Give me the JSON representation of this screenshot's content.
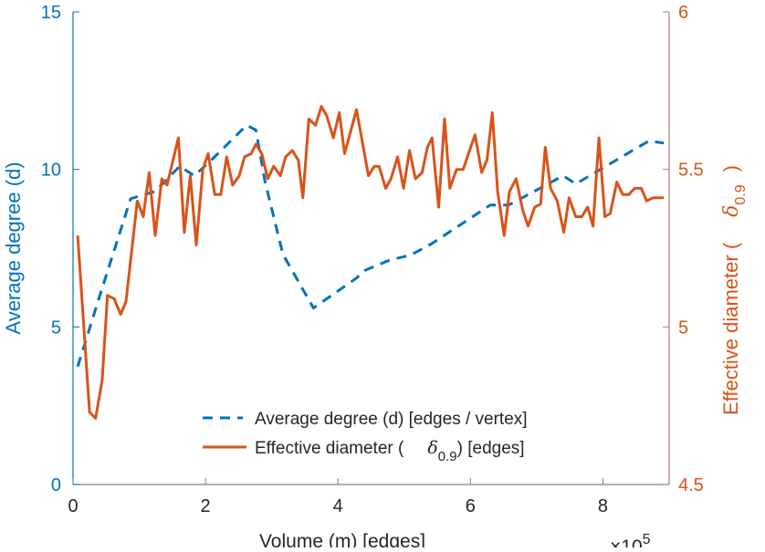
{
  "colors": {
    "left": "#0072BD",
    "right": "#D95319",
    "axis": "#262626",
    "right_axis_line": "#B07F74"
  },
  "chart_data": {
    "type": "line",
    "title": "",
    "xlabel": "Volume (m) [edges]",
    "x_exponent_label": "×10",
    "x_exponent": "5",
    "ylabel_left": "Average degree (d)",
    "ylabel_right_prefix": "Effective diameter (",
    "ylabel_right_symbol": "δ",
    "ylabel_right_sub": "0.9",
    "ylabel_right_suffix": ")",
    "xlim": [
      0,
      9
    ],
    "ylim_left": [
      0,
      15
    ],
    "ylim_right": [
      4.5,
      6
    ],
    "x_ticks": [
      "0",
      "2",
      "4",
      "6",
      "8"
    ],
    "y_left_ticks": [
      "0",
      "5",
      "10",
      "15"
    ],
    "y_right_ticks": [
      "4.5",
      "5",
      "5.5",
      "6"
    ],
    "legend": {
      "placement": "bottom-center",
      "entries": [
        {
          "label": "Average degree (d) [edges / vertex]"
        },
        {
          "label_prefix": "Effective diameter (",
          "symbol": "δ",
          "sub": "0.9",
          "label_suffix": ") [edges]"
        }
      ]
    },
    "series": [
      {
        "name": "Average degree (d) [edges / vertex]",
        "axis": "left",
        "style": "dashed",
        "x": [
          0.07,
          0.41,
          0.87,
          1.24,
          1.61,
          1.83,
          2.07,
          2.62,
          2.76,
          2.9,
          3.17,
          3.63,
          4.28,
          4.41,
          4.79,
          5.1,
          5.42,
          6.3,
          6.58,
          7.4,
          7.59,
          8.1,
          8.69,
          8.92
        ],
        "values": [
          3.74,
          6.03,
          9.07,
          9.3,
          10.1,
          9.8,
          10.26,
          11.4,
          11.25,
          9.6,
          7.3,
          5.6,
          6.55,
          6.8,
          7.13,
          7.28,
          7.65,
          8.87,
          8.87,
          9.8,
          9.54,
          10.17,
          10.9,
          10.84
        ]
      },
      {
        "name": "Effective diameter (δ0.9) [edges]",
        "axis": "right",
        "style": "solid",
        "x": [
          0.07,
          0.25,
          0.34,
          0.44,
          0.52,
          0.62,
          0.72,
          0.8,
          0.97,
          1.06,
          1.15,
          1.24,
          1.34,
          1.42,
          1.59,
          1.68,
          1.77,
          1.86,
          1.96,
          2.04,
          2.14,
          2.23,
          2.32,
          2.41,
          2.51,
          2.59,
          2.69,
          2.76,
          2.85,
          2.94,
          3.03,
          3.13,
          3.21,
          3.31,
          3.4,
          3.47,
          3.56,
          3.66,
          3.75,
          3.83,
          3.93,
          4.02,
          4.1,
          4.28,
          4.46,
          4.55,
          4.62,
          4.72,
          4.8,
          4.9,
          4.99,
          5.08,
          5.17,
          5.27,
          5.35,
          5.42,
          5.52,
          5.61,
          5.69,
          5.79,
          5.89,
          5.97,
          6.07,
          6.17,
          6.25,
          6.33,
          6.41,
          6.51,
          6.59,
          6.69,
          6.79,
          6.87,
          6.97,
          7.06,
          7.13,
          7.21,
          7.31,
          7.41,
          7.49,
          7.59,
          7.68,
          7.77,
          7.85,
          7.94,
          8.03,
          8.11,
          8.21,
          8.3,
          8.39,
          8.48,
          8.58,
          8.66,
          8.76,
          8.92
        ],
        "values": [
          5.29,
          4.73,
          4.71,
          4.83,
          5.1,
          5.09,
          5.04,
          5.08,
          5.4,
          5.35,
          5.49,
          5.29,
          5.47,
          5.45,
          5.6,
          5.3,
          5.48,
          5.26,
          5.5,
          5.55,
          5.42,
          5.42,
          5.54,
          5.45,
          5.48,
          5.54,
          5.55,
          5.58,
          5.55,
          5.47,
          5.51,
          5.48,
          5.54,
          5.56,
          5.53,
          5.41,
          5.66,
          5.64,
          5.7,
          5.67,
          5.6,
          5.68,
          5.55,
          5.69,
          5.48,
          5.51,
          5.51,
          5.44,
          5.47,
          5.54,
          5.44,
          5.56,
          5.47,
          5.49,
          5.57,
          5.6,
          5.38,
          5.66,
          5.44,
          5.5,
          5.5,
          5.55,
          5.61,
          5.49,
          5.53,
          5.68,
          5.43,
          5.29,
          5.43,
          5.47,
          5.37,
          5.32,
          5.38,
          5.39,
          5.57,
          5.44,
          5.4,
          5.3,
          5.41,
          5.35,
          5.35,
          5.38,
          5.32,
          5.6,
          5.35,
          5.36,
          5.46,
          5.42,
          5.42,
          5.44,
          5.44,
          5.4,
          5.41,
          5.41
        ]
      }
    ]
  }
}
